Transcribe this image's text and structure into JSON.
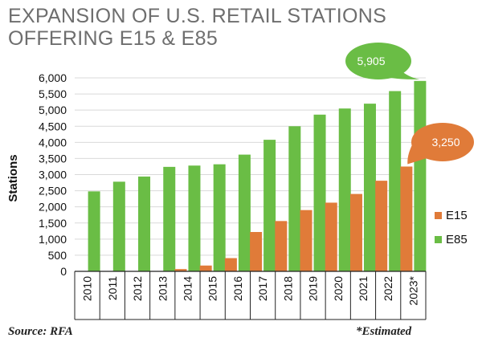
{
  "chart_data": {
    "type": "bar",
    "title_lines": [
      "EXPANSION OF U.S. RETAIL STATIONS",
      "OFFERING E15 & E85"
    ],
    "ylabel": "Stations",
    "xlabel": "",
    "ylim": [
      0,
      6000
    ],
    "yticks": [
      "0",
      "500",
      "1,000",
      "1,500",
      "2,000",
      "2,500",
      "3,000",
      "3,500",
      "4,000",
      "4,500",
      "5,000",
      "5,500",
      "6,000"
    ],
    "ytick_values": [
      0,
      500,
      1000,
      1500,
      2000,
      2500,
      3000,
      3500,
      4000,
      4500,
      5000,
      5500,
      6000
    ],
    "categories": [
      "2010",
      "2011",
      "2012",
      "2013",
      "2014",
      "2015",
      "2016",
      "2017",
      "2018",
      "2019",
      "2020",
      "2021",
      "2022",
      "2023*"
    ],
    "series": [
      {
        "name": "E15",
        "color": "#e07b39",
        "values": [
          0,
          0,
          0,
          0,
          70,
          180,
          410,
          1220,
          1560,
          1900,
          2130,
          2400,
          2810,
          3250
        ]
      },
      {
        "name": "E85",
        "color": "#6abd45",
        "values": [
          2480,
          2780,
          2940,
          3240,
          3280,
          3320,
          3620,
          4080,
          4500,
          4860,
          5050,
          5200,
          5590,
          5905
        ]
      }
    ],
    "legend_position": "right",
    "annotations": {
      "e85": {
        "label": "5,905",
        "color": "#6abd45"
      },
      "e15": {
        "label": "3,250",
        "color": "#e07b39"
      }
    }
  },
  "footer": {
    "source": "Source: RFA",
    "note": "*Estimated"
  }
}
